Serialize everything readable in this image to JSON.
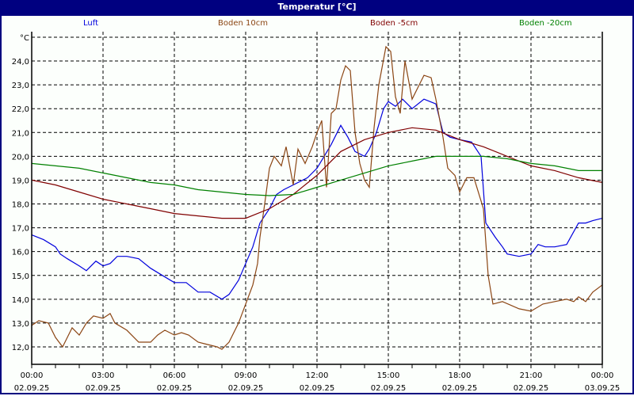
{
  "window": {
    "title": "Temperatur [°C]",
    "title_bg": "#000080"
  },
  "chart_data": {
    "type": "line",
    "title": "Temperatur [°C]",
    "xlabel": "",
    "ylabel": "°C",
    "ylim": [
      11.3,
      25.0
    ],
    "y_ticks": [
      "12,0",
      "13,0",
      "14,0",
      "15,0",
      "16,0",
      "17,0",
      "18,0",
      "19,0",
      "20,0",
      "21,0",
      "22,0",
      "23,0",
      "24,0"
    ],
    "y_tick_values": [
      12,
      13,
      14,
      15,
      16,
      17,
      18,
      19,
      20,
      21,
      22,
      23,
      24,
      25
    ],
    "x_ticks": [
      {
        "time": "00:00",
        "date": "02.09.25",
        "h": 0
      },
      {
        "time": "03:00",
        "date": "02.09.25",
        "h": 3
      },
      {
        "time": "06:00",
        "date": "02.09.25",
        "h": 6
      },
      {
        "time": "09:00",
        "date": "02.09.25",
        "h": 9
      },
      {
        "time": "12:00",
        "date": "02.09.25",
        "h": 12
      },
      {
        "time": "15:00",
        "date": "02.09.25",
        "h": 15
      },
      {
        "time": "18:00",
        "date": "02.09.25",
        "h": 18
      },
      {
        "time": "21:00",
        "date": "02.09.25",
        "h": 21
      },
      {
        "time": "00:00",
        "date": "03.09.25",
        "h": 24
      }
    ],
    "grid": true,
    "legend_position": "top",
    "series": [
      {
        "name": "Luft",
        "color": "#0000dd",
        "x": [
          0,
          0.5,
          1,
          1.2,
          1.5,
          2,
          2.3,
          2.7,
          3,
          3.3,
          3.6,
          4,
          4.5,
          5,
          5.5,
          6,
          6.5,
          7,
          7.5,
          8,
          8.3,
          8.7,
          9,
          9.3,
          9.6,
          10,
          10.3,
          10.6,
          11,
          11.4,
          11.6,
          12,
          12.3,
          12.6,
          13,
          13.3,
          13.6,
          14,
          14.2,
          14.5,
          14.8,
          15,
          15.3,
          15.6,
          16,
          16.5,
          17,
          17.3,
          17.6,
          18,
          18.5,
          18.9,
          19.1,
          19.5,
          19.8,
          20,
          20.5,
          21,
          21.3,
          21.6,
          22,
          22.5,
          23,
          23.3,
          23.6,
          24
        ],
        "values": [
          16.7,
          16.5,
          16.2,
          15.9,
          15.7,
          15.4,
          15.2,
          15.6,
          15.4,
          15.5,
          15.8,
          15.8,
          15.7,
          15.3,
          15.0,
          14.7,
          14.7,
          14.3,
          14.3,
          14.0,
          14.2,
          14.8,
          15.5,
          16.2,
          17.2,
          17.8,
          18.4,
          18.6,
          18.8,
          19.0,
          19.1,
          19.5,
          20.0,
          20.5,
          21.3,
          20.8,
          20.2,
          20.0,
          20.3,
          21.0,
          22.0,
          22.3,
          22.1,
          22.4,
          22.0,
          22.4,
          22.2,
          21.0,
          20.8,
          20.7,
          20.6,
          20.0,
          17.2,
          16.6,
          16.2,
          15.9,
          15.8,
          15.9,
          16.3,
          16.2,
          16.2,
          16.3,
          17.2,
          17.2,
          17.3,
          17.4
        ]
      },
      {
        "name": "Boden 10cm",
        "color": "#8b4513",
        "x": [
          0,
          0.3,
          0.7,
          1,
          1.3,
          1.7,
          2,
          2.3,
          2.6,
          3,
          3.3,
          3.5,
          4,
          4.5,
          5,
          5.3,
          5.6,
          6,
          6.3,
          6.6,
          7,
          7.4,
          7.8,
          8,
          8.3,
          8.7,
          9,
          9.3,
          9.5,
          9.6,
          9.8,
          10,
          10.2,
          10.5,
          10.7,
          11,
          11.2,
          11.5,
          11.8,
          12,
          12.2,
          12.4,
          12.6,
          12.8,
          13,
          13.2,
          13.4,
          13.6,
          13.8,
          14,
          14.2,
          14.4,
          14.6,
          14.9,
          15.1,
          15.3,
          15.5,
          15.7,
          16,
          16.3,
          16.5,
          16.8,
          17,
          17.3,
          17.5,
          17.8,
          18,
          18.3,
          18.6,
          19,
          19.2,
          19.4,
          19.8,
          20.5,
          21,
          21.5,
          22,
          22.5,
          22.8,
          23,
          23.3,
          23.6,
          24
        ],
        "values": [
          12.9,
          13.1,
          13.0,
          12.4,
          12.0,
          12.8,
          12.5,
          13.0,
          13.3,
          13.2,
          13.4,
          13.0,
          12.7,
          12.2,
          12.2,
          12.5,
          12.7,
          12.5,
          12.6,
          12.5,
          12.2,
          12.1,
          12.0,
          11.9,
          12.2,
          13.0,
          13.8,
          14.6,
          15.5,
          16.6,
          18.0,
          19.5,
          20.0,
          19.6,
          20.4,
          18.8,
          20.3,
          19.7,
          20.4,
          21.0,
          21.5,
          18.7,
          21.8,
          22.0,
          23.2,
          23.8,
          23.6,
          21.0,
          19.7,
          19.0,
          18.7,
          21.2,
          23.0,
          24.6,
          24.4,
          22.5,
          21.8,
          24.0,
          22.4,
          23.0,
          23.4,
          23.3,
          22.4,
          20.8,
          19.5,
          19.2,
          18.5,
          19.1,
          19.1,
          17.8,
          15.0,
          13.8,
          13.9,
          13.6,
          13.5,
          13.8,
          13.9,
          14.0,
          13.9,
          14.1,
          13.9,
          14.3,
          14.6
        ]
      },
      {
        "name": "Boden -5cm",
        "color": "#800000",
        "x": [
          0,
          1,
          2,
          3,
          4,
          5,
          6,
          7,
          8,
          9,
          10,
          11,
          12,
          13,
          14,
          15,
          16,
          17,
          18,
          19,
          20,
          21,
          22,
          23,
          24
        ],
        "values": [
          19.0,
          18.8,
          18.5,
          18.2,
          18.0,
          17.8,
          17.6,
          17.5,
          17.4,
          17.4,
          17.8,
          18.4,
          19.2,
          20.2,
          20.7,
          21.0,
          21.2,
          21.1,
          20.7,
          20.4,
          20.0,
          19.6,
          19.4,
          19.1,
          18.9
        ]
      },
      {
        "name": "Boden -20cm",
        "color": "#008000",
        "x": [
          0,
          1,
          2,
          3,
          4,
          5,
          6,
          7,
          8,
          9,
          10,
          11,
          12,
          13,
          14,
          15,
          16,
          17,
          18,
          19,
          20,
          21,
          22,
          23,
          24
        ],
        "values": [
          19.7,
          19.6,
          19.5,
          19.3,
          19.1,
          18.9,
          18.8,
          18.6,
          18.5,
          18.4,
          18.35,
          18.4,
          18.7,
          19.0,
          19.3,
          19.6,
          19.8,
          20.0,
          20.0,
          20.0,
          19.9,
          19.7,
          19.6,
          19.4,
          19.4
        ]
      }
    ]
  }
}
